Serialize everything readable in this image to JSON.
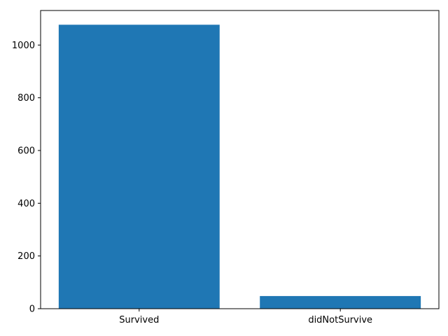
{
  "chart_data": {
    "type": "bar",
    "categories": [
      "Survived",
      "didNotSurvive"
    ],
    "values": [
      1077,
      48
    ],
    "title": "",
    "xlabel": "",
    "ylabel": "",
    "ylim": [
      0,
      1131
    ],
    "yticks": [
      0,
      200,
      400,
      600,
      800,
      1000
    ],
    "grid": false,
    "bar_color": "#1f77b4"
  }
}
